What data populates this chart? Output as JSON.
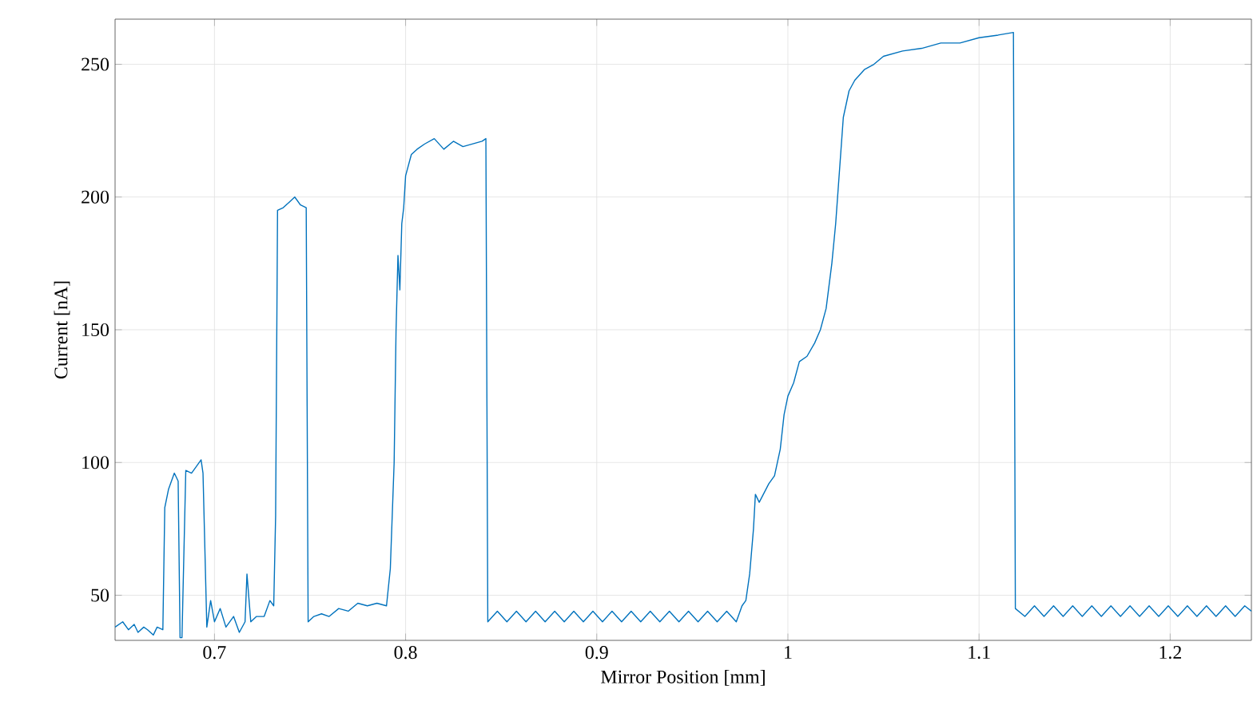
{
  "chart_data": {
    "type": "line",
    "xlabel": "Mirror Position [mm]",
    "ylabel": "Current [nA]",
    "xlim": [
      0.648,
      1.2425
    ],
    "ylim": [
      33,
      267
    ],
    "xticks": [
      0.7,
      0.8,
      0.9,
      1,
      1.1,
      1.2
    ],
    "yticks": [
      50,
      100,
      150,
      200,
      250
    ],
    "grid": true,
    "marker": "none",
    "line_style": "solid",
    "series": [
      {
        "color": "#0072bd",
        "x": [
          0.648,
          0.652,
          0.655,
          0.658,
          0.66,
          0.663,
          0.665,
          0.668,
          0.67,
          0.673,
          0.674,
          0.676,
          0.679,
          0.681,
          0.682,
          0.683,
          0.685,
          0.688,
          0.691,
          0.693,
          0.694,
          0.696,
          0.698,
          0.7,
          0.703,
          0.706,
          0.71,
          0.713,
          0.716,
          0.717,
          0.719,
          0.722,
          0.726,
          0.729,
          0.731,
          0.732,
          0.733,
          0.736,
          0.739,
          0.742,
          0.745,
          0.748,
          0.749,
          0.752,
          0.756,
          0.76,
          0.765,
          0.77,
          0.775,
          0.78,
          0.785,
          0.79,
          0.792,
          0.794,
          0.795,
          0.796,
          0.797,
          0.798,
          0.799,
          0.8,
          0.803,
          0.806,
          0.81,
          0.815,
          0.82,
          0.825,
          0.83,
          0.835,
          0.84,
          0.842,
          0.843,
          0.848,
          0.853,
          0.858,
          0.863,
          0.868,
          0.873,
          0.878,
          0.883,
          0.888,
          0.893,
          0.898,
          0.903,
          0.908,
          0.913,
          0.918,
          0.923,
          0.928,
          0.933,
          0.938,
          0.943,
          0.948,
          0.953,
          0.958,
          0.963,
          0.968,
          0.973,
          0.976,
          0.978,
          0.98,
          0.982,
          0.983,
          0.985,
          0.99,
          0.993,
          0.996,
          0.998,
          1.0,
          1.003,
          1.006,
          1.01,
          1.014,
          1.017,
          1.02,
          1.023,
          1.025,
          1.027,
          1.029,
          1.032,
          1.035,
          1.04,
          1.045,
          1.05,
          1.06,
          1.07,
          1.08,
          1.09,
          1.1,
          1.11,
          1.118,
          1.119,
          1.124,
          1.129,
          1.134,
          1.139,
          1.144,
          1.149,
          1.154,
          1.159,
          1.164,
          1.169,
          1.174,
          1.179,
          1.184,
          1.189,
          1.194,
          1.199,
          1.204,
          1.209,
          1.214,
          1.219,
          1.224,
          1.229,
          1.234,
          1.239,
          1.2425
        ],
        "values": [
          38,
          40,
          37,
          39,
          36,
          38,
          37,
          35,
          38,
          37,
          83,
          90,
          96,
          93,
          34,
          34,
          97,
          96,
          99,
          101,
          96,
          38,
          48,
          40,
          45,
          38,
          42,
          36,
          40,
          58,
          40,
          42,
          42,
          48,
          46,
          80,
          195,
          196,
          198,
          200,
          197,
          196,
          40,
          42,
          43,
          42,
          45,
          44,
          47,
          46,
          47,
          46,
          60,
          100,
          150,
          178,
          165,
          190,
          196,
          208,
          216,
          218,
          220,
          222,
          218,
          221,
          219,
          220,
          221,
          222,
          40,
          44,
          40,
          44,
          40,
          44,
          40,
          44,
          40,
          44,
          40,
          44,
          40,
          44,
          40,
          44,
          40,
          44,
          40,
          44,
          40,
          44,
          40,
          44,
          40,
          44,
          40,
          46,
          48,
          58,
          75,
          88,
          85,
          92,
          95,
          105,
          118,
          125,
          130,
          138,
          140,
          145,
          150,
          158,
          175,
          190,
          210,
          230,
          240,
          244,
          248,
          250,
          253,
          255,
          256,
          258,
          258,
          260,
          261,
          262,
          45,
          42,
          46,
          42,
          46,
          42,
          46,
          42,
          46,
          42,
          46,
          42,
          46,
          42,
          46,
          42,
          46,
          42,
          46,
          42,
          46,
          42,
          46,
          42,
          46,
          44
        ]
      }
    ]
  }
}
